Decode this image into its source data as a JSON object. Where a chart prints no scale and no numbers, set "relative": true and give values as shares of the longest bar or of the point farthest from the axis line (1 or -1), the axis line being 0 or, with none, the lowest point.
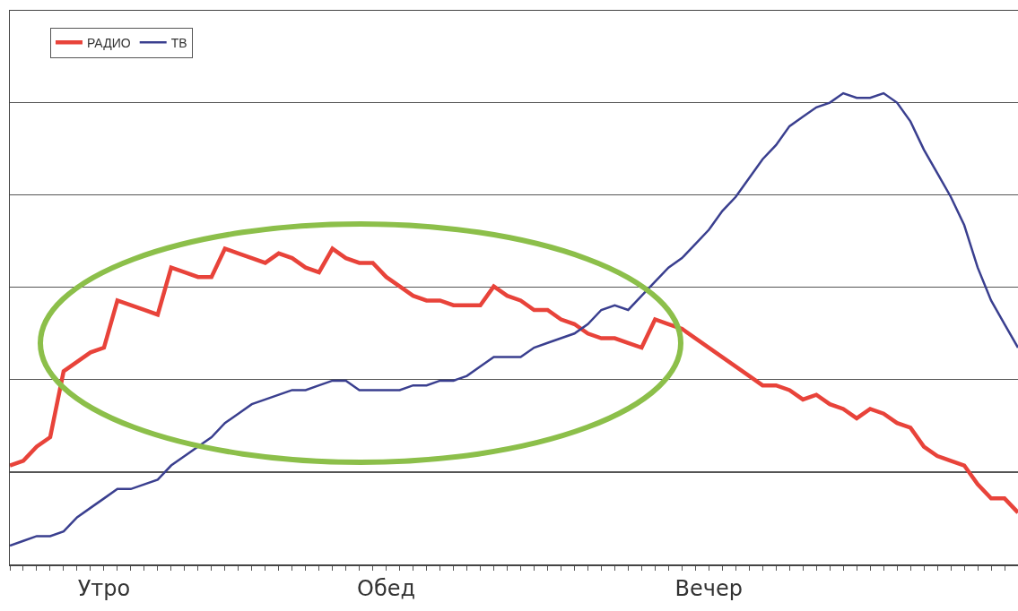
{
  "chart_data": {
    "type": "line",
    "relative": true,
    "grid": "y",
    "legend": "top left",
    "categories": [
      null,
      null,
      null,
      null,
      null,
      null,
      null,
      "Утро",
      null,
      null,
      null,
      null,
      null,
      null,
      null,
      null,
      null,
      null,
      null,
      null,
      null,
      null,
      null,
      null,
      null,
      null,
      null,
      null,
      "Обед",
      null,
      null,
      null,
      null,
      null,
      null,
      null,
      null,
      null,
      null,
      null,
      null,
      null,
      null,
      null,
      null,
      null,
      null,
      null,
      null,
      null,
      null,
      null,
      "Вечер",
      null,
      null,
      null,
      null,
      null,
      null,
      null,
      null,
      null,
      null,
      null,
      null,
      null,
      null,
      null,
      null,
      null,
      null,
      null,
      null,
      null,
      null,
      null
    ],
    "series": [
      {
        "name": "РАДИО",
        "color": "#e8433a",
        "values": [
          0.21,
          0.22,
          0.25,
          0.27,
          0.41,
          0.43,
          0.45,
          0.46,
          0.56,
          0.55,
          0.54,
          0.53,
          0.63,
          0.62,
          0.61,
          0.61,
          0.67,
          0.66,
          0.65,
          0.64,
          0.66,
          0.65,
          0.63,
          0.62,
          0.67,
          0.65,
          0.64,
          0.64,
          0.61,
          0.59,
          0.57,
          0.56,
          0.56,
          0.55,
          0.55,
          0.55,
          0.59,
          0.57,
          0.56,
          0.54,
          0.54,
          0.52,
          0.51,
          0.49,
          0.48,
          0.48,
          0.47,
          0.46,
          0.52,
          0.51,
          0.5,
          0.48,
          0.46,
          0.44,
          0.42,
          0.4,
          0.38,
          0.38,
          0.37,
          0.35,
          0.36,
          0.34,
          0.33,
          0.31,
          0.33,
          0.32,
          0.3,
          0.29,
          0.25,
          0.23,
          0.22,
          0.21,
          0.17,
          0.14,
          0.14,
          0.11
        ]
      },
      {
        "name": "ТВ",
        "color": "#3a3f8f",
        "values": [
          0.04,
          0.05,
          0.06,
          0.06,
          0.07,
          0.1,
          0.12,
          0.14,
          0.16,
          0.16,
          0.17,
          0.18,
          0.21,
          0.23,
          0.25,
          0.27,
          0.3,
          0.32,
          0.34,
          0.35,
          0.36,
          0.37,
          0.37,
          0.38,
          0.39,
          0.39,
          0.37,
          0.37,
          0.37,
          0.37,
          0.38,
          0.38,
          0.39,
          0.39,
          0.4,
          0.42,
          0.44,
          0.44,
          0.44,
          0.46,
          0.47,
          0.48,
          0.49,
          0.51,
          0.54,
          0.55,
          0.54,
          0.57,
          0.6,
          0.63,
          0.65,
          0.68,
          0.71,
          0.75,
          0.78,
          0.82,
          0.86,
          0.89,
          0.93,
          0.95,
          0.97,
          0.98,
          1.0,
          0.99,
          0.99,
          1.0,
          0.98,
          0.94,
          0.88,
          0.83,
          0.78,
          0.72,
          0.63,
          0.56,
          0.51,
          0.46
        ]
      }
    ]
  }
}
